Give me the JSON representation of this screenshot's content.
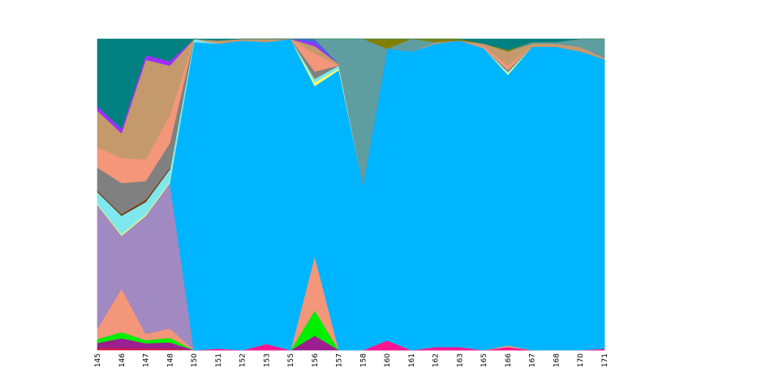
{
  "chart_data": {
    "type": "area",
    "stacked": true,
    "normalized": true,
    "categories": [
      "145",
      "146",
      "147",
      "148",
      "150",
      "151",
      "152",
      "153",
      "155",
      "156",
      "157",
      "158",
      "160",
      "161",
      "162",
      "163",
      "165",
      "166",
      "167",
      "168",
      "170",
      "171"
    ],
    "title": "",
    "xlabel": "",
    "ylabel": "",
    "ylim": [
      0,
      1
    ],
    "y_axis_visible": false,
    "grid": false,
    "legend": "none",
    "series": [
      {
        "color": "#DC143C",
        "values": [
          0.008,
          0.006,
          0.005,
          0.005,
          0.0,
          0.0,
          0.0,
          0.0,
          0.0,
          0.0,
          0.0,
          0.0,
          0.0,
          0.0,
          0.0,
          0.0,
          0.0,
          0.0,
          0.0,
          0.0,
          0.0,
          0.0
        ]
      },
      {
        "color": "#9B1F8E",
        "values": [
          0.02,
          0.032,
          0.017,
          0.02,
          0.0,
          0.0,
          0.0,
          0.0,
          0.0,
          0.04,
          0.0,
          0.0,
          0.0,
          0.0,
          0.0,
          0.0,
          0.0,
          0.0,
          0.0,
          0.0,
          0.0,
          0.0
        ]
      },
      {
        "color": "#FF1493",
        "values": [
          0.0,
          0.0,
          0.0,
          0.0,
          0.0,
          0.005,
          0.0,
          0.02,
          0.0,
          0.0,
          0.0,
          0.0,
          0.03,
          0.0,
          0.01,
          0.01,
          0.0,
          0.01,
          0.0,
          0.0,
          0.0,
          0.005
        ]
      },
      {
        "color": "#00EE00",
        "values": [
          0.015,
          0.02,
          0.01,
          0.015,
          0.0,
          0.0,
          0.0,
          0.0,
          0.0,
          0.07,
          0.0,
          0.0,
          0.0,
          0.0,
          0.0,
          0.0,
          0.0,
          0.0,
          0.0,
          0.0,
          0.0,
          0.0
        ]
      },
      {
        "color": "#F4967A",
        "values": [
          0.04,
          0.14,
          0.02,
          0.03,
          0.0,
          0.0,
          0.0,
          0.0,
          0.0,
          0.15,
          0.0,
          0.0,
          0.0,
          0.0,
          0.0,
          0.0,
          0.0,
          0.005,
          0.0,
          0.0,
          0.0,
          0.0
        ]
      },
      {
        "color": "#A189C1",
        "values": [
          0.48,
          0.17,
          0.38,
          0.47,
          0.0,
          0.0,
          0.0,
          0.0,
          0.0,
          0.0,
          0.0,
          0.0,
          0.0,
          0.0,
          0.0,
          0.0,
          0.0,
          0.0,
          0.0,
          0.0,
          0.0,
          0.0
        ]
      },
      {
        "color": "#00B5FF",
        "values": [
          0.0,
          0.0,
          0.0,
          0.0,
          0.99,
          0.985,
          0.995,
          0.97,
          1.0,
          0.47,
          0.9,
          0.53,
          0.9,
          0.96,
          0.975,
          0.985,
          0.97,
          0.87,
          0.975,
          0.975,
          0.96,
          0.93
        ]
      },
      {
        "color": "#FFFF66",
        "values": [
          0.004,
          0.004,
          0.004,
          0.004,
          0.0,
          0.0,
          0.0,
          0.0,
          0.0,
          0.01,
          0.005,
          0.0,
          0.0,
          0.0,
          0.0,
          0.0,
          0.0,
          0.005,
          0.0,
          0.0,
          0.0,
          0.0
        ]
      },
      {
        "color": "#7FE7EE",
        "values": [
          0.045,
          0.06,
          0.04,
          0.04,
          0.01,
          0.0,
          0.0,
          0.0,
          0.0,
          0.01,
          0.01,
          0.0,
          0.0,
          0.0,
          0.0,
          0.0,
          0.0,
          0.005,
          0.0,
          0.0,
          0.0,
          0.0
        ]
      },
      {
        "color": "#7A3B0A",
        "values": [
          0.005,
          0.005,
          0.007,
          0.005,
          0.0,
          0.0,
          0.0,
          0.0,
          0.0,
          0.0,
          0.0,
          0.0,
          0.0,
          0.0,
          0.0,
          0.0,
          0.0,
          0.0,
          0.0,
          0.0,
          0.0,
          0.0
        ]
      },
      {
        "color": "#808080",
        "values": [
          0.09,
          0.1,
          0.06,
          0.08,
          0.0,
          0.0,
          0.0,
          0.0,
          0.0,
          0.02,
          0.0,
          0.0,
          0.0,
          0.0,
          0.0,
          0.0,
          0.0,
          0.005,
          0.0,
          0.0,
          0.0,
          0.0
        ]
      },
      {
        "color": "#F4967A",
        "values": [
          0.08,
          0.08,
          0.07,
          0.09,
          0.0,
          0.0,
          0.0,
          0.0,
          0.0,
          0.05,
          0.0,
          0.0,
          0.0,
          0.0,
          0.0,
          0.0,
          0.005,
          0.015,
          0.0,
          0.0,
          0.0,
          0.0
        ]
      },
      {
        "color": "#C49A6C",
        "values": [
          0.14,
          0.08,
          0.32,
          0.16,
          0.0,
          0.01,
          0.005,
          0.01,
          0.0,
          0.02,
          0.005,
          0.0,
          0.0,
          0.0,
          0.005,
          0.0,
          0.01,
          0.045,
          0.01,
          0.01,
          0.015,
          0.005
        ]
      },
      {
        "color": "#9B30FF",
        "values": [
          0.018,
          0.015,
          0.015,
          0.015,
          0.0,
          0.0,
          0.0,
          0.0,
          0.0,
          0.01,
          0.0,
          0.0,
          0.0,
          0.0,
          0.0,
          0.0,
          0.0,
          0.0,
          0.0,
          0.0,
          0.0,
          0.0
        ]
      },
      {
        "color": "#4169E1",
        "values": [
          0.0,
          0.0,
          0.0,
          0.0,
          0.0,
          0.0,
          0.0,
          0.0,
          0.0,
          0.01,
          0.0,
          0.0,
          0.0,
          0.0,
          0.0,
          0.0,
          0.0,
          0.0,
          0.0,
          0.0,
          0.0,
          0.0
        ]
      },
      {
        "color": "#5F9EA0",
        "values": [
          0.0,
          0.0,
          0.0,
          0.0,
          0.0,
          0.0,
          0.0,
          0.0,
          0.0,
          0.0,
          0.08,
          0.47,
          0.0,
          0.04,
          0.0,
          0.0,
          0.0,
          0.0,
          0.005,
          0.005,
          0.025,
          0.06
        ]
      },
      {
        "color": "#808000",
        "values": [
          0.0,
          0.0,
          0.0,
          0.0,
          0.0,
          0.0,
          0.0,
          0.0,
          0.0,
          0.0,
          0.0,
          0.0,
          0.03,
          0.0,
          0.01,
          0.005,
          0.0,
          0.005,
          0.0,
          0.0,
          0.0,
          0.0
        ]
      },
      {
        "color": "#008080",
        "values": [
          0.26,
          0.288,
          0.052,
          0.071,
          0.0,
          0.005,
          0.0,
          0.0,
          0.0,
          0.0,
          0.0,
          0.0,
          0.0,
          0.0,
          0.0,
          0.0,
          0.015,
          0.035,
          0.01,
          0.01,
          0.0,
          0.0
        ]
      }
    ]
  }
}
